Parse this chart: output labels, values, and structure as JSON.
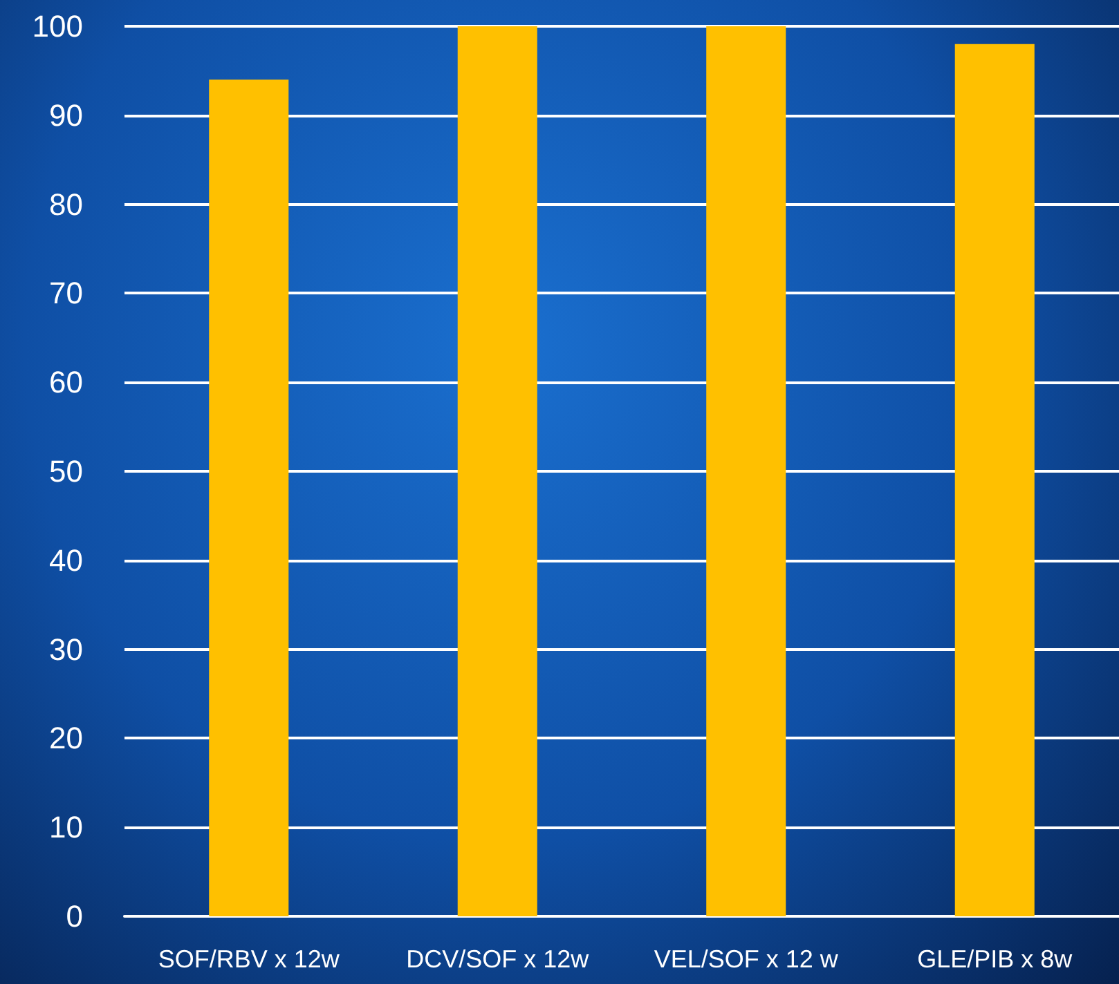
{
  "chart_data": {
    "type": "bar",
    "categories": [
      "SOF/RBV x 12w",
      "DCV/SOF x 12w",
      "VEL/SOF x 12 w",
      "GLE/PIB x 8w"
    ],
    "values": [
      94,
      100,
      100,
      98
    ],
    "color": "#ffc000",
    "ylim": [
      0,
      100
    ],
    "yticks": [
      0,
      10,
      20,
      30,
      40,
      50,
      60,
      70,
      80,
      90,
      100
    ],
    "grid": "y"
  }
}
